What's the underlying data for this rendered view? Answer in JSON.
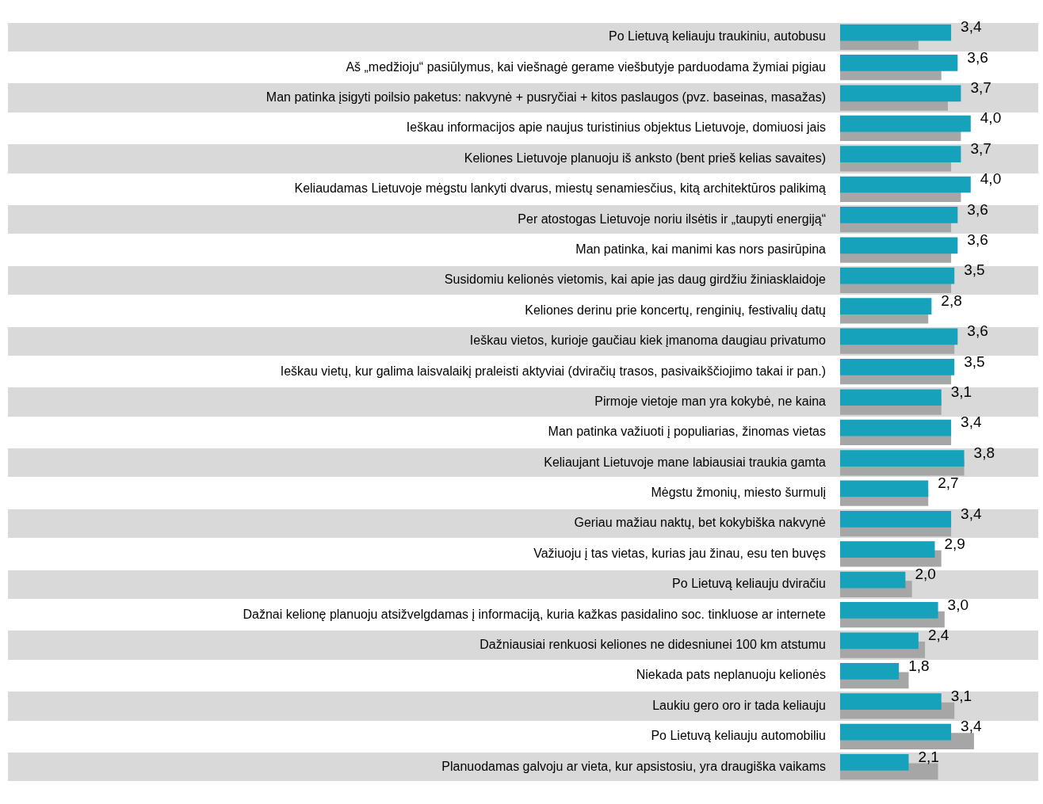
{
  "chart_data": {
    "type": "bar",
    "orientation": "horizontal",
    "tick_labels": "y",
    "grid": false,
    "legend": false,
    "categories": [
      "Po Lietuvą keliauju traukiniu, autobusu",
      "Aš „medžioju“ pasiūlymus, kai viešnagė gerame viešbutyje parduodama žymiai pigiau",
      "Man patinka įsigyti poilsio paketus: nakvynė + pusryčiai + kitos paslaugos (pvz. baseinas, masažas)",
      "Ieškau informacijos apie naujus turistinius objektus Lietuvoje, domiuosi jais",
      "Keliones Lietuvoje planuoju iš anksto (bent prieš kelias savaites)",
      "Keliaudamas Lietuvoje mėgstu lankyti dvarus, miestų senamiesčius, kitą architektūros palikimą",
      "Per atostogas Lietuvoje noriu ilsėtis ir „taupyti energiją“",
      "Man patinka, kai manimi kas nors pasirūpina",
      "Susidomiu kelionės vietomis, kai apie jas daug girdžiu žiniasklaidoje",
      "Keliones derinu prie koncertų, renginių, festivalių datų",
      "Ieškau vietos, kurioje gaučiau kiek įmanoma daugiau privatumo",
      "Ieškau vietų, kur galima laisvalaikį praleisti aktyviai (dviračių trasos, pasivaikščiojimo takai ir pan.)",
      "Pirmoje vietoje man yra kokybė, ne kaina",
      "Man patinka važiuoti į populiarias, žinomas vietas",
      "Keliaujant Lietuvoje mane labiausiai traukia gamta",
      "Mėgstu žmonių, miesto šurmulį",
      "Geriau mažiau naktų, bet kokybiška nakvynė",
      "Važiuoju į tas vietas, kurias jau žinau, esu ten buvęs",
      "Po Lietuvą keliauju dviračiu",
      "Dažnai kelionę planuoju atsižvelgdamas į informaciją, kuria kažkas pasidalino soc. tinkluose ar internete",
      "Dažniausiai renkuosi keliones ne didesniunei 100 km atstumu",
      "Niekada pats neplanuoju kelionės",
      "Laukiu gero oro ir tada keliauju",
      "Po Lietuvą keliauju automobiliu",
      "Planuodamas galvoju ar vieta, kur apsistosiu, yra draugiška vaikams"
    ],
    "series": [
      {
        "color": "#16a2bb",
        "values": [
          3.4,
          3.6,
          3.7,
          4.0,
          3.7,
          4.0,
          3.6,
          3.6,
          3.5,
          2.8,
          3.6,
          3.5,
          3.1,
          3.4,
          3.8,
          2.7,
          3.4,
          2.9,
          2.0,
          3.0,
          2.4,
          1.8,
          3.1,
          3.4,
          2.1
        ],
        "value_labels": [
          "3,4",
          "3,6",
          "3,7",
          "4,0",
          "3,7",
          "4,0",
          "3,6",
          "3,6",
          "3,5",
          "2,8",
          "3,6",
          "3,5",
          "3,1",
          "3,4",
          "3,8",
          "2,7",
          "3,4",
          "2,9",
          "2,0",
          "3,0",
          "2,4",
          "1,8",
          "3,1",
          "3,4",
          "2,1"
        ]
      },
      {
        "color": "#a6a6a6",
        "values": [
          2.4,
          3.1,
          3.3,
          3.7,
          3.4,
          3.7,
          3.4,
          3.4,
          3.4,
          2.7,
          3.5,
          3.4,
          3.1,
          3.4,
          3.8,
          2.7,
          3.4,
          3.1,
          2.2,
          3.2,
          2.6,
          2.1,
          3.5,
          4.1,
          3.0
        ]
      }
    ]
  }
}
